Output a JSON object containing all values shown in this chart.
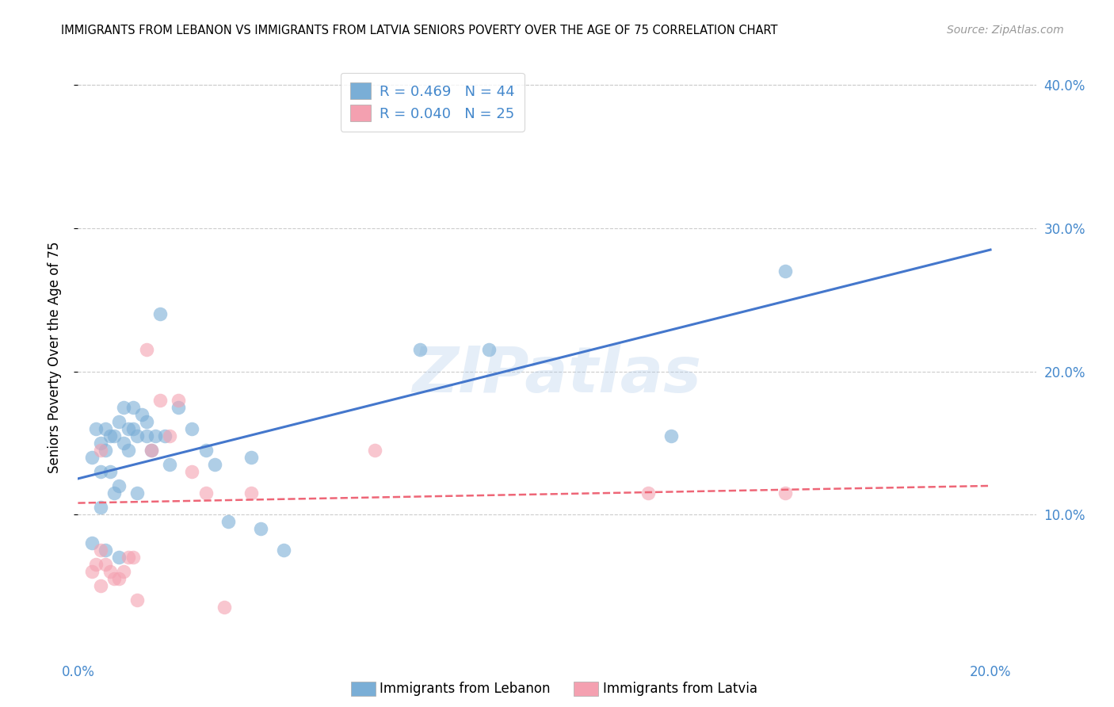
{
  "title": "IMMIGRANTS FROM LEBANON VS IMMIGRANTS FROM LATVIA SENIORS POVERTY OVER THE AGE OF 75 CORRELATION CHART",
  "source": "Source: ZipAtlas.com",
  "ylabel": "Seniors Poverty Over the Age of 75",
  "ylim": [
    0,
    0.42
  ],
  "xlim": [
    0,
    0.21
  ],
  "yticks": [
    0.1,
    0.2,
    0.3,
    0.4
  ],
  "ytick_labels": [
    "10.0%",
    "20.0%",
    "30.0%",
    "40.0%"
  ],
  "legend_blue_r": "R = 0.469",
  "legend_blue_n": "N = 44",
  "legend_pink_r": "R = 0.040",
  "legend_pink_n": "N = 25",
  "blue_color": "#7aaed6",
  "pink_color": "#f4a0b0",
  "line_blue_color": "#4477cc",
  "line_pink_color": "#ee6677",
  "tick_color": "#4488cc",
  "watermark": "ZIPatlas",
  "blue_scatter_x": [
    0.003,
    0.004,
    0.005,
    0.005,
    0.005,
    0.006,
    0.006,
    0.007,
    0.007,
    0.008,
    0.008,
    0.009,
    0.009,
    0.01,
    0.01,
    0.011,
    0.011,
    0.012,
    0.012,
    0.013,
    0.013,
    0.014,
    0.015,
    0.015,
    0.016,
    0.017,
    0.018,
    0.019,
    0.02,
    0.022,
    0.025,
    0.028,
    0.03,
    0.033,
    0.038,
    0.04,
    0.045,
    0.075,
    0.09,
    0.13,
    0.155,
    0.003,
    0.006,
    0.009
  ],
  "blue_scatter_y": [
    0.14,
    0.16,
    0.15,
    0.13,
    0.105,
    0.16,
    0.145,
    0.155,
    0.13,
    0.155,
    0.115,
    0.165,
    0.12,
    0.175,
    0.15,
    0.16,
    0.145,
    0.16,
    0.175,
    0.155,
    0.115,
    0.17,
    0.165,
    0.155,
    0.145,
    0.155,
    0.24,
    0.155,
    0.135,
    0.175,
    0.16,
    0.145,
    0.135,
    0.095,
    0.14,
    0.09,
    0.075,
    0.215,
    0.215,
    0.155,
    0.27,
    0.08,
    0.075,
    0.07
  ],
  "pink_scatter_x": [
    0.003,
    0.004,
    0.005,
    0.005,
    0.006,
    0.007,
    0.008,
    0.009,
    0.01,
    0.011,
    0.012,
    0.013,
    0.015,
    0.016,
    0.018,
    0.02,
    0.022,
    0.025,
    0.028,
    0.032,
    0.038,
    0.065,
    0.125,
    0.155,
    0.005
  ],
  "pink_scatter_y": [
    0.06,
    0.065,
    0.075,
    0.05,
    0.065,
    0.06,
    0.055,
    0.055,
    0.06,
    0.07,
    0.07,
    0.04,
    0.215,
    0.145,
    0.18,
    0.155,
    0.18,
    0.13,
    0.115,
    0.035,
    0.115,
    0.145,
    0.115,
    0.115,
    0.145
  ],
  "blue_line_x": [
    0.0,
    0.2
  ],
  "blue_line_y": [
    0.125,
    0.285
  ],
  "pink_line_x": [
    0.0,
    0.2
  ],
  "pink_line_y": [
    0.108,
    0.12
  ]
}
